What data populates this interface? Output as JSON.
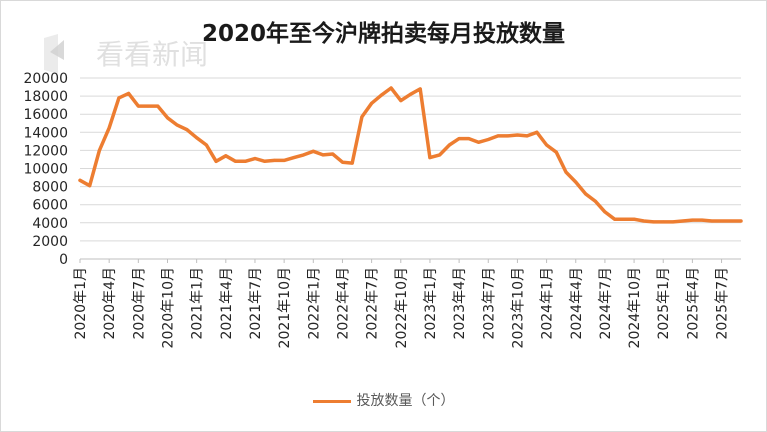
{
  "page": {
    "title": "2020年至今沪牌拍卖每月投放数量",
    "watermark": "看看新闻"
  },
  "colors": {
    "series": "#ed7d31",
    "grid": "#d9d9d9",
    "axis_text": "#262626"
  },
  "chart_data": {
    "type": "line",
    "title": "2020年至今沪牌拍卖每月投放数量",
    "xlabel": "",
    "ylabel": "",
    "ylim": [
      0,
      20000
    ],
    "yticks": [
      0,
      2000,
      4000,
      6000,
      8000,
      10000,
      12000,
      14000,
      16000,
      18000,
      20000
    ],
    "grid": true,
    "legend_position": "bottom",
    "x_tick_labels": [
      "2020年1月",
      "2020年4月",
      "2020年7月",
      "2020年10月",
      "2021年1月",
      "2021年4月",
      "2021年7月",
      "2021年10月",
      "2022年1月",
      "2022年4月",
      "2022年7月",
      "2022年10月",
      "2023年1月",
      "2023年4月",
      "2023年7月",
      "2023年10月",
      "2024年1月",
      "2024年4月",
      "2024年7月",
      "2024年10月",
      "2025年1月",
      "2025年4月",
      "2025年7月"
    ],
    "x": [
      "2020-01",
      "2020-02",
      "2020-03",
      "2020-04",
      "2020-05",
      "2020-06",
      "2020-07",
      "2020-08",
      "2020-09",
      "2020-10",
      "2020-11",
      "2020-12",
      "2021-01",
      "2021-02",
      "2021-03",
      "2021-04",
      "2021-05",
      "2021-06",
      "2021-07",
      "2021-08",
      "2021-09",
      "2021-10",
      "2021-11",
      "2021-12",
      "2022-01",
      "2022-02",
      "2022-03",
      "2022-04",
      "2022-05",
      "2022-06",
      "2022-07",
      "2022-08",
      "2022-09",
      "2022-10",
      "2022-11",
      "2022-12",
      "2023-01",
      "2023-02",
      "2023-03",
      "2023-04",
      "2023-05",
      "2023-06",
      "2023-07",
      "2023-08",
      "2023-09",
      "2023-10",
      "2023-11",
      "2023-12",
      "2024-01",
      "2024-02",
      "2024-03",
      "2024-04",
      "2024-05",
      "2024-06",
      "2024-07",
      "2024-08",
      "2024-09",
      "2024-10",
      "2024-11",
      "2024-12",
      "2025-01",
      "2025-02",
      "2025-03",
      "2025-04",
      "2025-05",
      "2025-06",
      "2025-07",
      "2025-08",
      "2025-09"
    ],
    "series": [
      {
        "name": "投放数量（个）",
        "color": "#ed7d31",
        "values": [
          8700,
          8100,
          12000,
          14500,
          17800,
          18300,
          16900,
          16900,
          16900,
          15600,
          14800,
          14300,
          13400,
          12600,
          10800,
          11400,
          10800,
          10800,
          11100,
          10800,
          10900,
          10900,
          11200,
          11500,
          11900,
          11500,
          11600,
          10700,
          10600,
          15700,
          17200,
          18100,
          18900,
          17500,
          18200,
          18800,
          11200,
          11500,
          12600,
          13300,
          13300,
          12900,
          13200,
          13600,
          13600,
          13700,
          13600,
          14000,
          12600,
          11800,
          9600,
          8500,
          7200,
          6400,
          5200,
          4400,
          4400,
          4400,
          4200,
          4100,
          4100,
          4100,
          4200,
          4300,
          4300,
          4200,
          4200,
          4200,
          4200
        ]
      }
    ]
  }
}
